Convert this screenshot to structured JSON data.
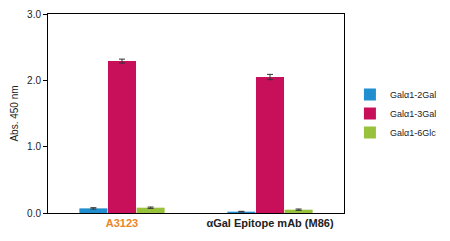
{
  "chart_data": {
    "type": "bar",
    "categories": [
      "A3123",
      "αGal Epitope mAb (M86)"
    ],
    "y_label": "Abs. 450 nm",
    "series": [
      {
        "name": "Galα1-2Gal",
        "color": "#1f8fd0",
        "values": [
          0.07,
          0.02
        ],
        "errors": [
          0.01,
          0.005
        ]
      },
      {
        "name": "Galα1-3Gal",
        "color": "#c8105a",
        "values": [
          2.29,
          2.05
        ],
        "errors": [
          0.03,
          0.04
        ]
      },
      {
        "name": "Galα1-6Glc",
        "color": "#98c23c",
        "values": [
          0.08,
          0.05
        ],
        "errors": [
          0.01,
          0.01
        ]
      }
    ],
    "ylim": [
      0,
      3
    ],
    "yticks": [
      {
        "value": 0,
        "label": "0.0"
      },
      {
        "value": 1,
        "label": "1.0"
      },
      {
        "value": 2,
        "label": "2.0"
      },
      {
        "value": 3,
        "label": "3.0"
      }
    ],
    "grid": false,
    "legend": "right"
  }
}
